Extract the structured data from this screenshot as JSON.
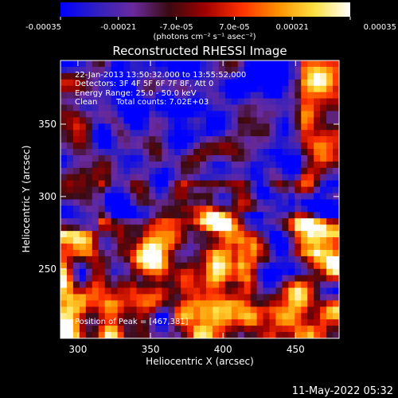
{
  "colorbar": {
    "ticks": [
      {
        "value": -0.00035,
        "label": "-0.00035"
      },
      {
        "value": -0.00021,
        "label": "-0.00021"
      },
      {
        "value": -7e-05,
        "label": "-7.0e-05"
      },
      {
        "value": 7e-05,
        "label": "7.0e-05"
      },
      {
        "value": 0.00021,
        "label": "0.00021"
      },
      {
        "value": 0.00035,
        "label": "0.00035"
      }
    ],
    "range": [
      -0.00035,
      0.00035
    ],
    "unit_label": "(photons cm⁻² s⁻¹ asec⁻²)",
    "colormap": "RHESSI red-temperature",
    "stops": [
      "#0000ff",
      "#3020c0",
      "#6a2a9e",
      "#3a0a10",
      "#a00000",
      "#ff3000",
      "#ff9000",
      "#ffe040",
      "#ffffff"
    ]
  },
  "chart_data": {
    "type": "heatmap",
    "title": "Reconstructed RHESSI Image",
    "xlabel": "Heliocentric X (arcsec)",
    "ylabel": "Heliocentric Y (arcsec)",
    "xlim": [
      288,
      480
    ],
    "ylim": [
      202,
      394
    ],
    "xticks": [
      300,
      350,
      400,
      450
    ],
    "yticks": [
      250,
      300,
      350
    ],
    "annotations": {
      "time_range": "22-Jan-2013 13:50:32.000 to 13:55:52.000",
      "detectors": "Detectors: 3F 4F 5F 6F 7F 8F, Att 0",
      "energy": "Energy Range: 25.0 - 50.0 keV",
      "method": "Clean",
      "total_counts": "Total counts: 7.02E+03",
      "peak": "Position of Peak = [467,381]"
    },
    "peak_position": [
      467,
      381
    ],
    "field_description": "upper region negative (blue/purple), lower region positive (red/orange/yellow) mottled flux"
  },
  "footer": {
    "timestamp": "11-May-2022 05:32"
  }
}
